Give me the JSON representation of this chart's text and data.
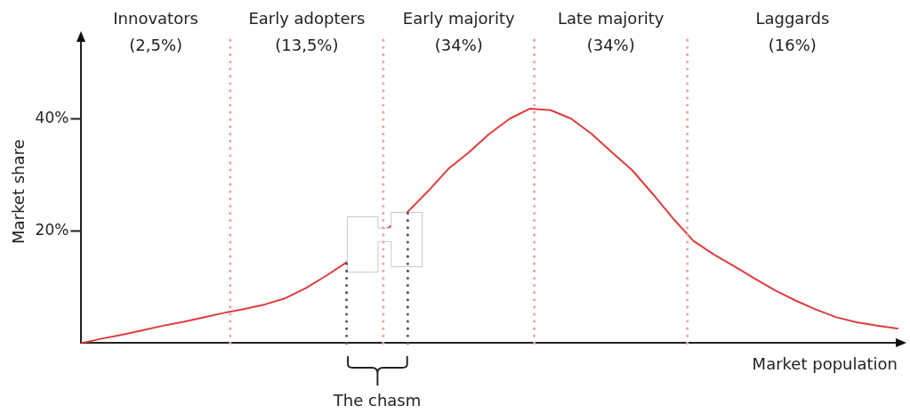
{
  "chart_data": {
    "type": "line",
    "xlabel": "Market population",
    "ylabel": "Market share",
    "ylim": [
      0,
      54
    ],
    "yticks": [
      {
        "value": 20,
        "label": "20%"
      },
      {
        "value": 40,
        "label": "40%"
      }
    ],
    "tick_labels": "y",
    "marker": "none",
    "categories": [
      null,
      null,
      null,
      null,
      null,
      null,
      null,
      null,
      null,
      null,
      null,
      null,
      null,
      null,
      null,
      null,
      null,
      null,
      null,
      null,
      null,
      null,
      null,
      null,
      null,
      null,
      null,
      null,
      null,
      null,
      null,
      null,
      null,
      null,
      null,
      null,
      null,
      null,
      null,
      null,
      null
    ],
    "series": [
      {
        "color": "#e03c3c",
        "values": [
          0,
          0.8,
          1.5,
          2.3,
          3.1,
          3.8,
          4.6,
          5.4,
          6.1,
          6.9,
          8.0,
          9.8,
          12.0,
          14.4,
          null,
          null,
          23.4,
          27.1,
          31.1,
          34.0,
          37.3,
          40.0,
          41.8,
          41.5,
          40.0,
          37.3,
          34.0,
          30.8,
          26.6,
          22.2,
          18.2,
          15.8,
          13.7,
          11.5,
          9.4,
          7.6,
          6.0,
          4.6,
          3.7,
          3.1,
          2.6
        ]
      }
    ],
    "annotations": [
      "Innovators\n(2,5%)",
      "Early adopters\n(13,5%)",
      "Early majority\n(34%)",
      "Late majority\n(34%)",
      "Laggards\n(16%)",
      "The chasm"
    ]
  }
}
